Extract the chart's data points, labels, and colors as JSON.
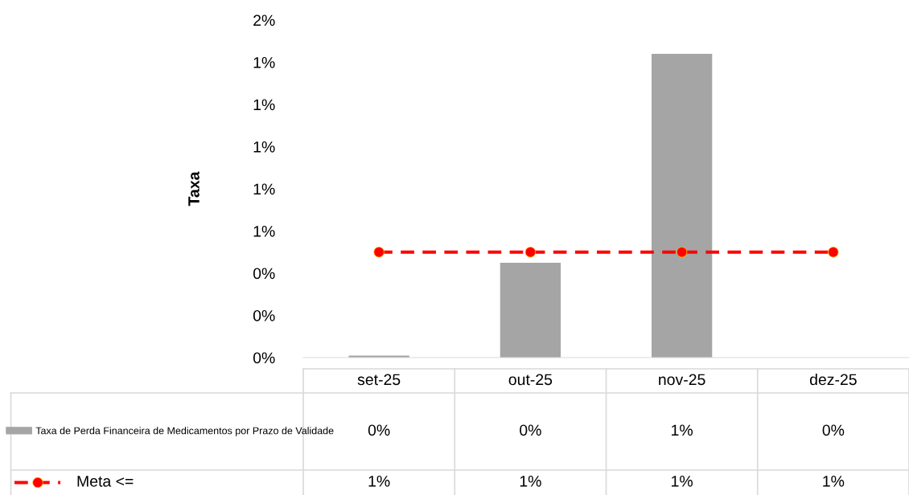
{
  "chart_data": {
    "type": "bar",
    "ylabel": "Taxa",
    "categories": [
      "set-25",
      "out-25",
      "nov-25",
      "dez-25"
    ],
    "series": [
      {
        "name": "Taxa de Perda Financeira de Medicamentos por Prazo de Validade",
        "color": "#a5a5a5",
        "values": [
          0.01,
          0.45,
          1.44,
          0
        ],
        "value_labels": [
          "0%",
          "0%",
          "1%",
          "0%"
        ]
      },
      {
        "name": "Meta <=",
        "type": "line",
        "color": "#ff0000",
        "marker": "circle",
        "line_style": "dashed",
        "values": [
          0.5,
          0.5,
          0.5,
          0.5
        ],
        "value_labels": [
          "1%",
          "1%",
          "1%",
          "1%"
        ]
      }
    ],
    "ylim": [
      0,
      1.6
    ],
    "yticks": [
      {
        "value": 0,
        "label": "0%"
      },
      {
        "value": 0.2,
        "label": "0%"
      },
      {
        "value": 0.4,
        "label": "0%"
      },
      {
        "value": 0.6,
        "label": "1%"
      },
      {
        "value": 0.8,
        "label": "1%"
      },
      {
        "value": 1.0,
        "label": "1%"
      },
      {
        "value": 1.2,
        "label": "1%"
      },
      {
        "value": 1.4,
        "label": "1%"
      },
      {
        "value": 1.6,
        "label": "2%"
      }
    ],
    "grid": false,
    "legend": "bottom"
  }
}
